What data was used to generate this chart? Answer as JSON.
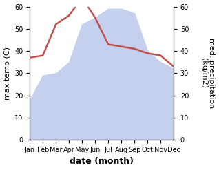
{
  "months": [
    "Jan",
    "Feb",
    "Mar",
    "Apr",
    "May",
    "Jun",
    "Jul",
    "Aug",
    "Sep",
    "Oct",
    "Nov",
    "Dec"
  ],
  "temperature": [
    37,
    38,
    52,
    56,
    64,
    55,
    43,
    42,
    41,
    39,
    38,
    33
  ],
  "precipitation": [
    18,
    29,
    30,
    35,
    52,
    55,
    59,
    59,
    57,
    40,
    35,
    32
  ],
  "temp_color": "#c0504d",
  "precip_fill_color": "#c5cfee",
  "ylabel_left": "max temp (C)",
  "ylabel_right": "med. precipitation\n(kg/m2)",
  "xlabel": "date (month)",
  "ylim_left": [
    0,
    60
  ],
  "ylim_right": [
    0,
    60
  ],
  "temp_linewidth": 1.8,
  "tick_fontsize": 7,
  "label_fontsize": 8,
  "xlabel_fontsize": 9
}
